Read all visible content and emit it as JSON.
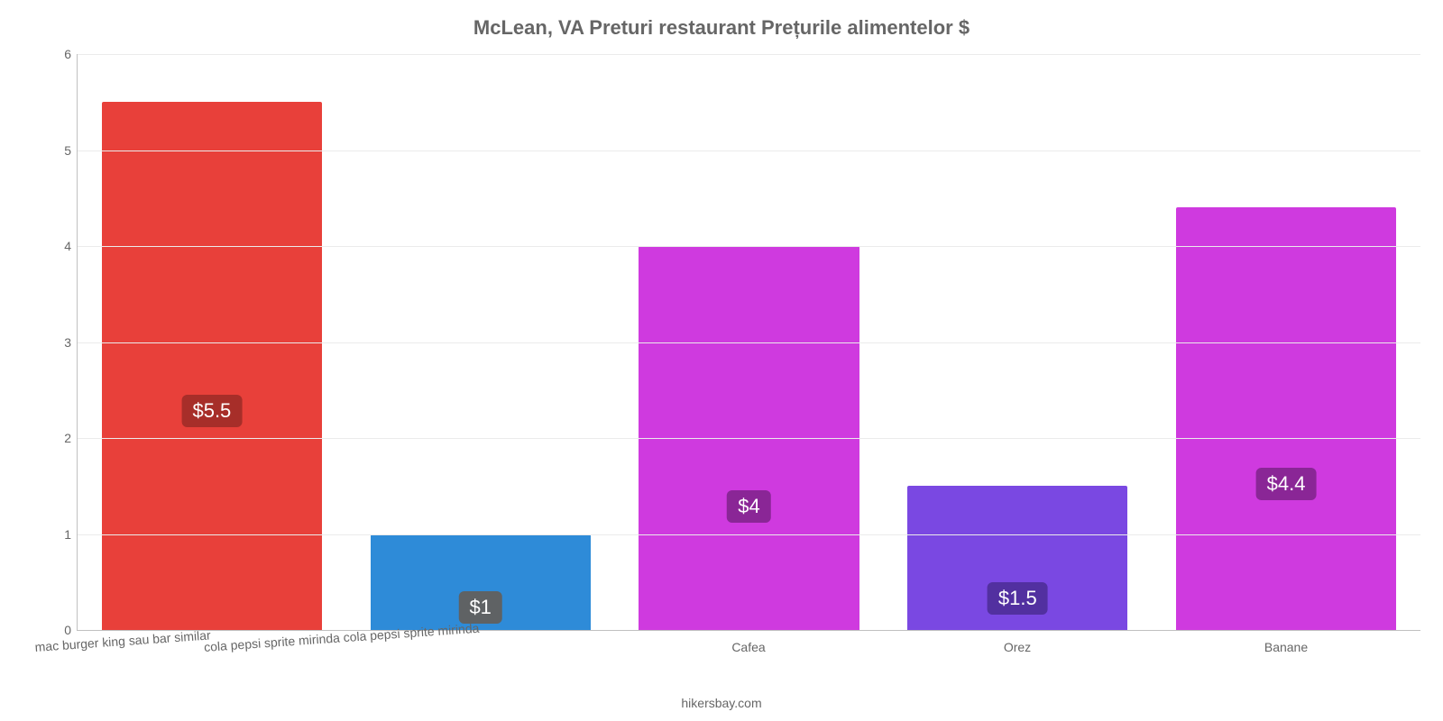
{
  "chart": {
    "type": "bar",
    "title": "McLean, VA Preturi restaurant Prețurile alimentelor $",
    "title_fontsize": 22,
    "title_color": "#666666",
    "background_color": "#ffffff",
    "grid_color": "#ebebeb",
    "axis_color": "#c0c0c0",
    "ylim": [
      0,
      6
    ],
    "yticks": [
      0,
      1,
      2,
      3,
      4,
      5,
      6
    ],
    "ytick_color": "#666666",
    "ytick_fontsize": 14,
    "xtick_color": "#666666",
    "xtick_fontsize": 14,
    "bar_width": 0.82,
    "value_label_fontsize": 22,
    "value_label_color": "#ffffff",
    "value_badge_radius": 6,
    "categories": [
      "mac burger king sau bar similar",
      "cola pepsi sprite mirinda cola pepsi sprite mirinda",
      "Cafea",
      "Orez",
      "Banane"
    ],
    "values": [
      5.5,
      1,
      4,
      1.5,
      4.4
    ],
    "value_labels": [
      "$5.5",
      "$1",
      "$4",
      "$1.5",
      "$4.4"
    ],
    "bar_colors": [
      "#e8403a",
      "#2e8bd8",
      "#cf3adf",
      "#7a48e2",
      "#cf3adf"
    ],
    "value_badge_colors": [
      "#a72e29",
      "#5f6264",
      "#8a2696",
      "#5230a0",
      "#8a2696"
    ],
    "xlabel_rotated": [
      true,
      true,
      false,
      false,
      false
    ],
    "source": "hikersbay.com",
    "source_fontsize": 14,
    "source_color": "#666666"
  }
}
